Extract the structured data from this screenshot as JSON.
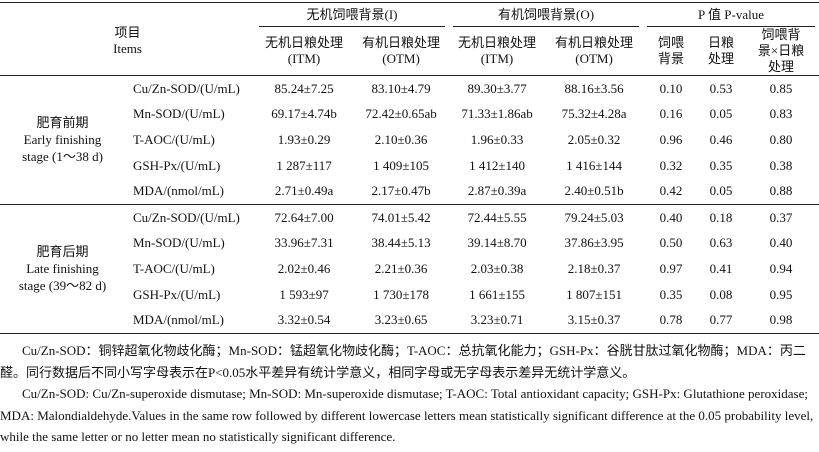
{
  "header": {
    "items": [
      "项目",
      "Items"
    ],
    "groups": [
      "无机饲喂背景(I)",
      "有机饲喂背景(O)",
      "P 值 P-value"
    ],
    "subheaders": [
      [
        "无机日粮处理",
        "(ITM)"
      ],
      [
        "有机日粮处理",
        "(OTM)"
      ],
      [
        "无机日粮处理",
        "(ITM)"
      ],
      [
        "有机日粮处理",
        "(OTM)"
      ],
      [
        "饲喂",
        "背景"
      ],
      [
        "日粮",
        "处理"
      ],
      [
        "饲喂背",
        "景×日粮",
        "处理"
      ]
    ]
  },
  "table": {
    "sections": [
      {
        "stage": [
          "肥育前期",
          "Early finishing",
          "stage (1～38 d)"
        ],
        "rows": [
          [
            "Cu/Zn-SOD/(U/mL)",
            "85.24±7.25",
            "83.10±4.79",
            "89.30±3.77",
            "88.16±3.56",
            "0.10",
            "0.53",
            "0.85"
          ],
          [
            "Mn-SOD/(U/mL)",
            "69.17±4.74b",
            "72.42±0.65ab",
            "71.33±1.86ab",
            "75.32±4.28a",
            "0.16",
            "0.05",
            "0.83"
          ],
          [
            "T-AOC/(U/mL)",
            "1.93±0.29",
            "2.10±0.36",
            "1.96±0.33",
            "2.05±0.32",
            "0.96",
            "0.46",
            "0.80"
          ],
          [
            "GSH-Px/(U/mL)",
            "1 287±117",
            "1 409±105",
            "1 412±140",
            "1 416±144",
            "0.32",
            "0.35",
            "0.38"
          ],
          [
            "MDA/(nmol/mL)",
            "2.71±0.49a",
            "2.17±0.47b",
            "2.87±0.39a",
            "2.40±0.51b",
            "0.42",
            "0.05",
            "0.88"
          ]
        ]
      },
      {
        "stage": [
          "肥育后期",
          "Late finishing",
          "stage (39～82 d)"
        ],
        "rows": [
          [
            "Cu/Zn-SOD/(U/mL)",
            "72.64±7.00",
            "74.01±5.42",
            "72.44±5.55",
            "79.24±5.03",
            "0.40",
            "0.18",
            "0.37"
          ],
          [
            "Mn-SOD/(U/mL)",
            "33.96±7.31",
            "38.44±5.13",
            "39.14±8.70",
            "37.86±3.95",
            "0.50",
            "0.63",
            "0.40"
          ],
          [
            "T-AOC/(U/mL)",
            "2.02±0.46",
            "2.21±0.36",
            "2.03±0.38",
            "2.18±0.37",
            "0.97",
            "0.41",
            "0.94"
          ],
          [
            "GSH-Px/(U/mL)",
            "1 593±97",
            "1 730±178",
            "1 661±155",
            "1 807±151",
            "0.35",
            "0.08",
            "0.95"
          ],
          [
            "MDA/(nmol/mL)",
            "3.32±0.54",
            "3.23±0.65",
            "3.23±0.71",
            "3.15±0.37",
            "0.78",
            "0.77",
            "0.98"
          ]
        ]
      }
    ]
  },
  "notes": [
    "Cu/Zn-SOD：铜锌超氧化物歧化酶；Mn-SOD：锰超氧化物歧化酶；T-AOC：总抗氧化能力；GSH-Px：谷胱甘肽过氧化物酶；MDA：丙二醛。同行数据后不同小写字母表示在P<0.05水平差异有统计学意义，相同字母或无字母表示差异无统计学意义。",
    "Cu/Zn-SOD: Cu/Zn-superoxide dismutase; Mn-SOD: Mn-superoxide dismutase; T-AOC: Total antioxidant capacity; GSH-Px: Glutathione peroxidase; MDA: Malondialdehyde.Values in the same row followed by different lowercase letters mean statistically significant difference at the 0.05 probability level, while the same letter or no letter mean no statistically significant difference."
  ]
}
